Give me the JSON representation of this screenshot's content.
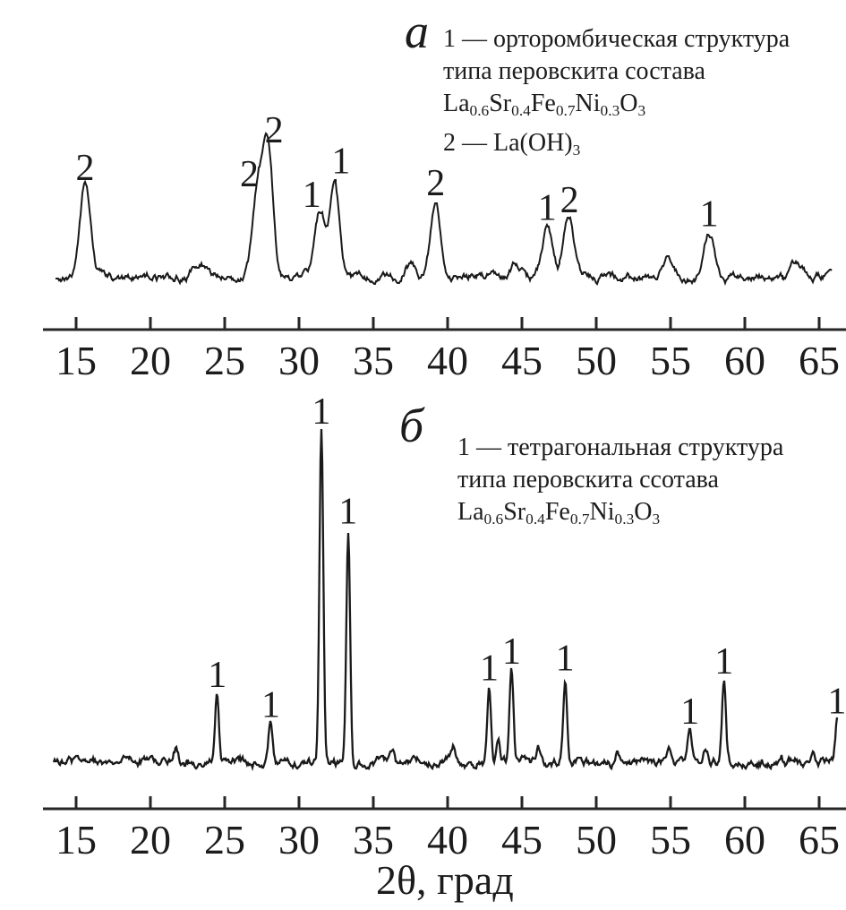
{
  "figure": {
    "xlabel": "2θ, град",
    "panels": [
      {
        "key": "a",
        "label": "а",
        "legend": [
          {
            "segments": [
              {
                "t": "1 — орторомбическая структура"
              }
            ]
          },
          {
            "segments": [
              {
                "t": "типа перовскита состава"
              }
            ]
          },
          {
            "segments": [
              {
                "t": "La"
              },
              {
                "sub": "0.6"
              },
              {
                "t": "Sr"
              },
              {
                "sub": "0.4"
              },
              {
                "t": "Fe"
              },
              {
                "sub": "0.7"
              },
              {
                "t": "Ni"
              },
              {
                "sub": "0.3"
              },
              {
                "t": "O"
              },
              {
                "sub": "3"
              }
            ]
          },
          {
            "segments": [
              {
                "t": "2 — La(OH)"
              },
              {
                "sub": "3"
              }
            ]
          }
        ]
      },
      {
        "key": "b",
        "label": "б",
        "legend": [
          {
            "segments": [
              {
                "t": "1 — тетрагональная структура"
              }
            ]
          },
          {
            "segments": [
              {
                "t": "типа перовскита ссотава"
              }
            ]
          },
          {
            "segments": [
              {
                "t": "La"
              },
              {
                "sub": "0.6"
              },
              {
                "t": "Sr"
              },
              {
                "sub": "0.4"
              },
              {
                "t": "Fe"
              },
              {
                "sub": "0.7"
              },
              {
                "t": "Ni"
              },
              {
                "sub": "0.3"
              },
              {
                "t": "O"
              },
              {
                "sub": "3"
              }
            ]
          }
        ]
      }
    ]
  },
  "chart_data": [
    {
      "type": "line",
      "panel": "а",
      "description": "XRD pattern, broad peaks",
      "xlabel": "2θ, град",
      "xlim": [
        13.5,
        66.5
      ],
      "xticks": [
        15,
        20,
        25,
        30,
        35,
        40,
        45,
        50,
        55,
        60,
        65
      ],
      "y_axis_shown": false,
      "peak_fwhm_deg": 0.8,
      "peaks": [
        {
          "two_theta": 15.6,
          "phase": "2",
          "rel_intensity": 71
        },
        {
          "two_theta": 27.2,
          "phase": "2",
          "rel_intensity": 66
        },
        {
          "two_theta": 27.9,
          "phase": "2",
          "rel_intensity": 100
        },
        {
          "two_theta": 31.4,
          "phase": "1",
          "rel_intensity": 50
        },
        {
          "two_theta": 32.4,
          "phase": "1",
          "rel_intensity": 76
        },
        {
          "two_theta": 39.2,
          "phase": "2",
          "rel_intensity": 59
        },
        {
          "two_theta": 46.7,
          "phase": "1",
          "rel_intensity": 40
        },
        {
          "two_theta": 48.2,
          "phase": "2",
          "rel_intensity": 46
        },
        {
          "two_theta": 57.6,
          "phase": "1",
          "rel_intensity": 35
        },
        {
          "two_theta": 23.3,
          "phase": null,
          "rel_intensity": 9
        },
        {
          "two_theta": 37.5,
          "phase": null,
          "rel_intensity": 10
        },
        {
          "two_theta": 44.6,
          "phase": null,
          "rel_intensity": 12
        },
        {
          "two_theta": 54.8,
          "phase": null,
          "rel_intensity": 13
        },
        {
          "two_theta": 63.4,
          "phase": null,
          "rel_intensity": 10
        }
      ],
      "legend": [
        "1 — орторомбическая структура типа перовскита состава La0.6Sr0.4Fe0.7Ni0.3O3",
        "2 — La(OH)3"
      ]
    },
    {
      "type": "line",
      "panel": "б",
      "description": "XRD pattern, narrow peaks",
      "xlabel": "2θ, град",
      "xlim": [
        13.5,
        66.5
      ],
      "xticks": [
        15,
        20,
        25,
        30,
        35,
        40,
        45,
        50,
        55,
        60,
        65
      ],
      "y_axis_shown": false,
      "peak_fwhm_deg": 0.3,
      "peaks": [
        {
          "two_theta": 24.5,
          "phase": "1",
          "rel_intensity": 21
        },
        {
          "two_theta": 28.1,
          "phase": "1",
          "rel_intensity": 12
        },
        {
          "two_theta": 31.5,
          "phase": "1",
          "rel_intensity": 100
        },
        {
          "two_theta": 33.3,
          "phase": "1",
          "rel_intensity": 70
        },
        {
          "two_theta": 42.8,
          "phase": "1",
          "rel_intensity": 23
        },
        {
          "two_theta": 44.3,
          "phase": "1",
          "rel_intensity": 28
        },
        {
          "two_theta": 47.9,
          "phase": "1",
          "rel_intensity": 26
        },
        {
          "two_theta": 56.3,
          "phase": "1",
          "rel_intensity": 10
        },
        {
          "two_theta": 58.6,
          "phase": "1",
          "rel_intensity": 25
        },
        {
          "two_theta": 66.2,
          "phase": "1",
          "rel_intensity": 13
        },
        {
          "two_theta": 21.7,
          "phase": null,
          "rel_intensity": 4
        },
        {
          "two_theta": 36.3,
          "phase": null,
          "rel_intensity": 4
        },
        {
          "two_theta": 40.4,
          "phase": null,
          "rel_intensity": 4
        },
        {
          "two_theta": 43.4,
          "phase": null,
          "rel_intensity": 6
        },
        {
          "two_theta": 46.1,
          "phase": null,
          "rel_intensity": 4
        },
        {
          "two_theta": 51.4,
          "phase": null,
          "rel_intensity": 4
        },
        {
          "two_theta": 54.9,
          "phase": null,
          "rel_intensity": 5
        },
        {
          "two_theta": 57.4,
          "phase": null,
          "rel_intensity": 4
        },
        {
          "two_theta": 62.4,
          "phase": null,
          "rel_intensity": 3
        },
        {
          "two_theta": 64.6,
          "phase": null,
          "rel_intensity": 3
        }
      ],
      "legend": [
        "1 — тетрагональная структура типа перовскита ссотава La0.6Sr0.4Fe0.7Ni0.3O3"
      ]
    }
  ]
}
